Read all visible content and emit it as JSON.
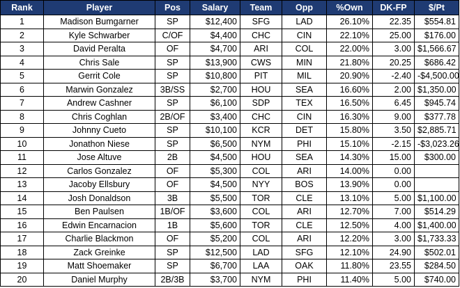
{
  "header_color": "#1f3b73",
  "columns": [
    "Rank",
    "Player",
    "Pos",
    "Salary",
    "Team",
    "Opp",
    "%Own",
    "DK-FP",
    "$/Pt"
  ],
  "rows": [
    [
      "1",
      "Madison Bumgarner",
      "SP",
      "$12,400",
      "SFG",
      "LAD",
      "26.10%",
      "22.35",
      "$554.81"
    ],
    [
      "2",
      "Kyle Schwarber",
      "C/OF",
      "$4,400",
      "CHC",
      "CIN",
      "22.10%",
      "25.00",
      "$176.00"
    ],
    [
      "3",
      "David Peralta",
      "OF",
      "$4,700",
      "ARI",
      "COL",
      "22.00%",
      "3.00",
      "$1,566.67"
    ],
    [
      "4",
      "Chris Sale",
      "SP",
      "$13,900",
      "CWS",
      "MIN",
      "21.80%",
      "20.25",
      "$686.42"
    ],
    [
      "5",
      "Gerrit Cole",
      "SP",
      "$10,800",
      "PIT",
      "MIL",
      "20.90%",
      "-2.40",
      "-$4,500.00"
    ],
    [
      "6",
      "Marwin Gonzalez",
      "3B/SS",
      "$2,700",
      "HOU",
      "SEA",
      "16.60%",
      "2.00",
      "$1,350.00"
    ],
    [
      "7",
      "Andrew Cashner",
      "SP",
      "$6,100",
      "SDP",
      "TEX",
      "16.50%",
      "6.45",
      "$945.74"
    ],
    [
      "8",
      "Chris Coghlan",
      "2B/OF",
      "$3,400",
      "CHC",
      "CIN",
      "16.30%",
      "9.00",
      "$377.78"
    ],
    [
      "9",
      "Johnny Cueto",
      "SP",
      "$10,100",
      "KCR",
      "DET",
      "15.80%",
      "3.50",
      "$2,885.71"
    ],
    [
      "10",
      "Jonathon Niese",
      "SP",
      "$6,500",
      "NYM",
      "PHI",
      "15.10%",
      "-2.15",
      "-$3,023.26"
    ],
    [
      "11",
      "Jose Altuve",
      "2B",
      "$4,500",
      "HOU",
      "SEA",
      "14.30%",
      "15.00",
      "$300.00"
    ],
    [
      "12",
      "Carlos Gonzalez",
      "OF",
      "$5,300",
      "COL",
      "ARI",
      "14.00%",
      "0.00",
      ""
    ],
    [
      "13",
      "Jacoby Ellsbury",
      "OF",
      "$4,500",
      "NYY",
      "BOS",
      "13.90%",
      "0.00",
      ""
    ],
    [
      "14",
      "Josh Donaldson",
      "3B",
      "$5,500",
      "TOR",
      "CLE",
      "13.10%",
      "5.00",
      "$1,100.00"
    ],
    [
      "15",
      "Ben Paulsen",
      "1B/OF",
      "$3,600",
      "COL",
      "ARI",
      "12.70%",
      "7.00",
      "$514.29"
    ],
    [
      "16",
      "Edwin Encarnacion",
      "1B",
      "$5,600",
      "TOR",
      "CLE",
      "12.50%",
      "4.00",
      "$1,400.00"
    ],
    [
      "17",
      "Charlie Blackmon",
      "OF",
      "$5,200",
      "COL",
      "ARI",
      "12.20%",
      "3.00",
      "$1,733.33"
    ],
    [
      "18",
      "Zack Greinke",
      "SP",
      "$12,500",
      "LAD",
      "SFG",
      "12.10%",
      "24.90",
      "$502.01"
    ],
    [
      "19",
      "Matt Shoemaker",
      "SP",
      "$6,700",
      "LAA",
      "OAK",
      "11.80%",
      "23.55",
      "$284.50"
    ],
    [
      "20",
      "Daniel Murphy",
      "2B/3B",
      "$3,700",
      "NYM",
      "PHI",
      "11.40%",
      "5.00",
      "$740.00"
    ]
  ]
}
